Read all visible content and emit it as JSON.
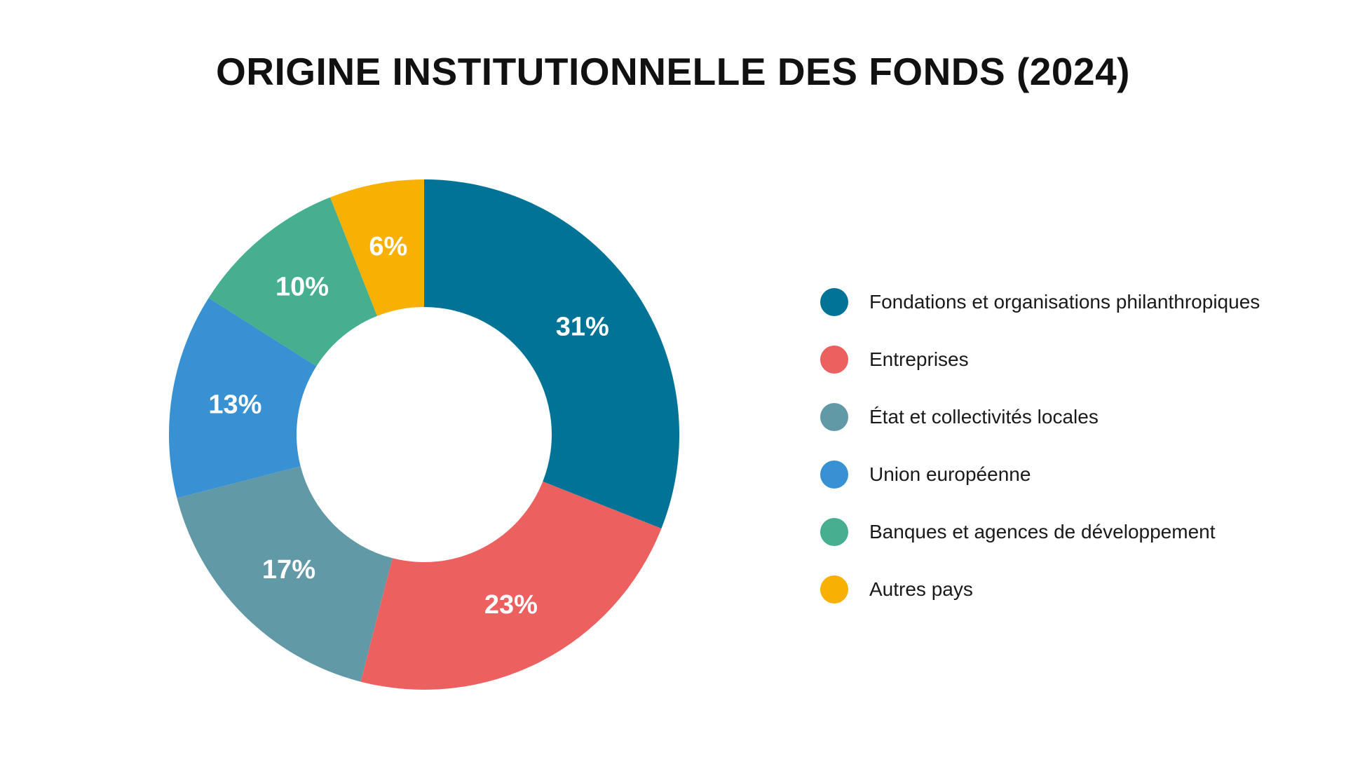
{
  "chart_data": {
    "type": "pie",
    "variant": "donut",
    "title": "ORIGINE INSTITUTIONNELLE DES FONDS (2024)",
    "start_angle": "12 o'clock, clockwise",
    "legend_placement": "right",
    "categories": [
      "Fondations et organisations philanthropiques",
      "Entreprises",
      "État et collectivités locales",
      "Union européenne",
      "Banques et agences de développement",
      "Autres pays"
    ],
    "values": [
      31,
      23,
      17,
      13,
      10,
      6
    ],
    "labels": [
      "31%",
      "23%",
      "17%",
      "13%",
      "10%",
      "6%"
    ],
    "colors": [
      "#007396",
      "#EC6060",
      "#6299A6",
      "#3891D3",
      "#45AF8F",
      "#F8B103"
    ]
  }
}
